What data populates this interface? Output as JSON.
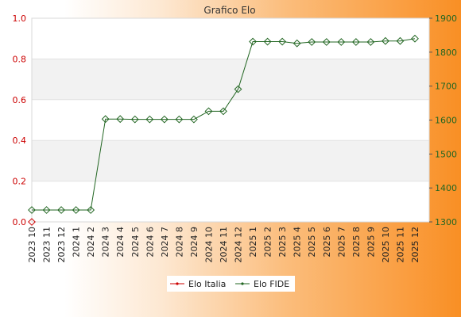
{
  "chart_data": {
    "type": "line",
    "title": "Grafico Elo",
    "categories": [
      "2023 10",
      "2023 11",
      "2023 12",
      "2024 1",
      "2024 2",
      "2024 3",
      "2024 4",
      "2024 5",
      "2024 6",
      "2024 7",
      "2024 8",
      "2024 9",
      "2024 10",
      "2024 11",
      "2024 12",
      "2025 1",
      "2025 2",
      "2025 3",
      "2025 4",
      "2025 5",
      "2025 6",
      "2025 7",
      "2025 8",
      "2025 9",
      "2025 10",
      "2025 11",
      "2025 12"
    ],
    "series": [
      {
        "name": "Elo Italia",
        "axis": "left",
        "color": "#cc0000",
        "values": [
          0,
          null,
          null,
          null,
          null,
          null,
          null,
          null,
          null,
          null,
          null,
          null,
          null,
          null,
          null,
          null,
          null,
          null,
          null,
          null,
          null,
          null,
          null,
          null,
          null,
          null,
          null
        ]
      },
      {
        "name": "Elo FIDE",
        "axis": "right",
        "color": "#226622",
        "values": [
          1335,
          1335,
          1335,
          1335,
          1335,
          1603,
          1603,
          1602,
          1602,
          1602,
          1602,
          1602,
          1626,
          1626,
          1691,
          1831,
          1831,
          1831,
          1826,
          1830,
          1830,
          1830,
          1830,
          1830,
          1833,
          1833,
          1840
        ]
      }
    ],
    "ylim_left": [
      0,
      1
    ],
    "yticks_left": [
      "0.0",
      "0.2",
      "0.4",
      "0.6",
      "0.8",
      "1.0"
    ],
    "ylim_right": [
      1300,
      1900
    ],
    "yticks_right": [
      "1300",
      "1400",
      "1500",
      "1600",
      "1700",
      "1800",
      "1900"
    ],
    "grid": "horizontal bands",
    "legend_position": "bottom-center",
    "colors": {
      "left_axis": "#cc0000",
      "right_axis": "#226622",
      "band": "#f2f2f2"
    }
  }
}
